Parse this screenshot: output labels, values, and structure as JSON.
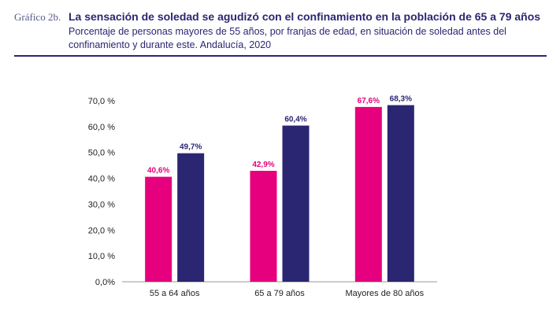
{
  "header": {
    "figure_label": "Gráfico 2b.",
    "title": "La sensación de soledad se agudizó con el confinamiento en la población de 65 a 79 años",
    "subtitle": "Porcentaje de personas mayores de 55 años, por franjas de edad, en situación de soledad antes del confinamiento y durante este. Andalucía, 2020"
  },
  "colors": {
    "series_1": "#e6007e",
    "series_2": "#2b2671",
    "title": "#2b2671",
    "axis": "#999999"
  },
  "chart_data": {
    "type": "bar",
    "categories": [
      "55 a 64 años",
      "65 a 79 años",
      "Mayores de 80 años"
    ],
    "series": [
      {
        "values": [
          40.6,
          42.9,
          67.6
        ],
        "data_labels": [
          "40,6%",
          "42,9%",
          "67,6%"
        ]
      },
      {
        "values": [
          49.7,
          60.4,
          68.3
        ],
        "data_labels": [
          "49,7%",
          "60,4%",
          "68,3%"
        ]
      }
    ],
    "y_ticks": [
      0,
      10,
      20,
      30,
      40,
      50,
      60,
      70
    ],
    "y_tick_labels": [
      "0,0%",
      "10,0 %",
      "20,0 %",
      "30,0 %",
      "40,0 %",
      "50,0 %",
      "60,0 %",
      "70,0 %"
    ],
    "ylim": [
      0,
      70
    ],
    "grid": false,
    "legend": "none"
  }
}
